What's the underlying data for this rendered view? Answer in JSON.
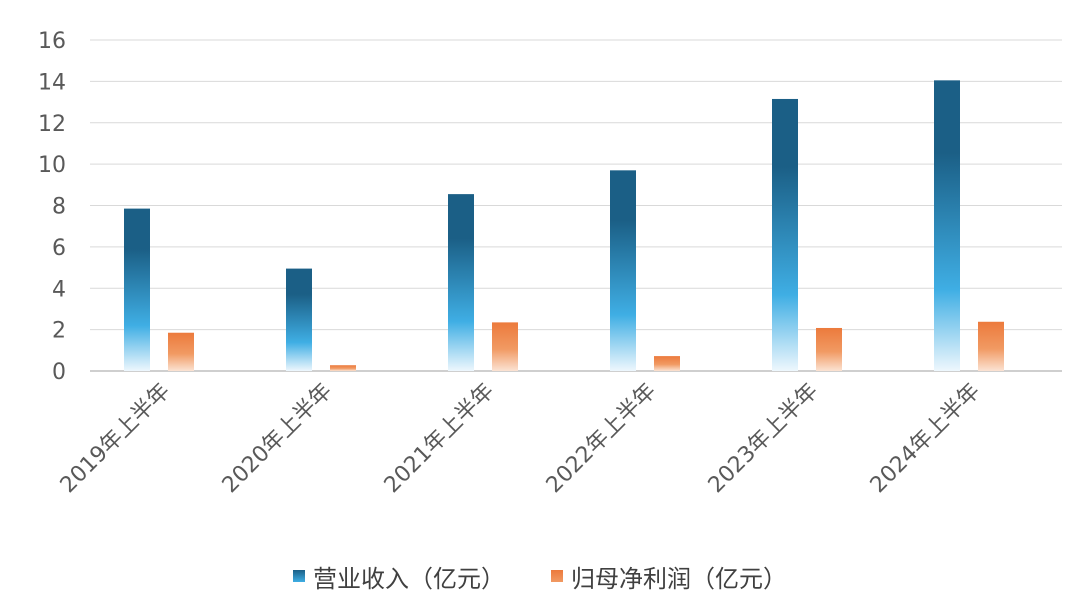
{
  "chart_data": {
    "type": "bar",
    "categories": [
      "2019年上半年",
      "2020年上半年",
      "2021年上半年",
      "2022年上半年",
      "2023年上半年",
      "2024年上半年"
    ],
    "series": [
      {
        "name": "营业收入（亿元）",
        "values": [
          7.85,
          4.95,
          8.55,
          9.7,
          13.15,
          14.05
        ],
        "color": "#1b5f86",
        "gradient": [
          "#1b5f86",
          "#3faee4",
          "#eef7fd"
        ]
      },
      {
        "name": "归母净利润（亿元）",
        "values": [
          1.85,
          0.28,
          2.35,
          0.72,
          2.08,
          2.38
        ],
        "color": "#ec7a3c",
        "gradient": [
          "#ec7a3c",
          "#f19a63",
          "#fbe3d3"
        ]
      }
    ],
    "yticks": [
      "0",
      "2",
      "4",
      "6",
      "8",
      "10",
      "12",
      "14",
      "16"
    ],
    "ylim": [
      0,
      16
    ],
    "grid": true,
    "legend_position": "bottom"
  }
}
